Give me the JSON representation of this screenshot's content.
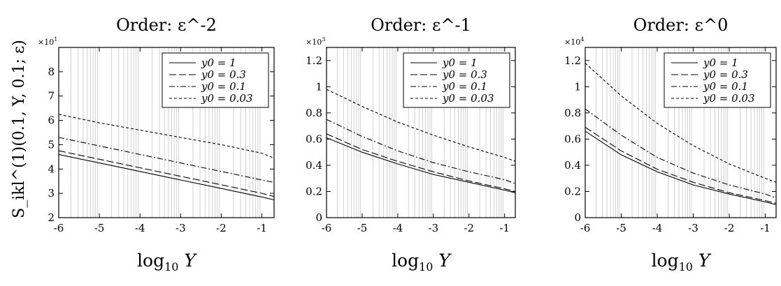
{
  "shared": {
    "ylabel": "S_ikl^(1)(0.1, Y, 0.1; ε)",
    "xlabel": "log10 Y",
    "legend": [
      "y0 = 1",
      "y0 = 0.3",
      "y0 = 0.1",
      "y0 = 0.03"
    ]
  },
  "chart_data": [
    {
      "type": "line",
      "title": "Order: ε^-2",
      "xlabel": "log10 Y",
      "ylabel": "S_ikl^(1)(0.1, Y, 0.1; ε)",
      "xlim": [
        -6,
        -0.7
      ],
      "ylim": [
        2,
        9
      ],
      "y_multiplier": "×10^1",
      "xticks": [
        -6,
        -5,
        -4,
        -3,
        -2,
        -1
      ],
      "yticks": [
        2,
        3,
        4,
        5,
        6,
        7,
        8
      ],
      "ytick_labels": [
        "2",
        "3",
        "4",
        "5",
        "6",
        "7",
        "8"
      ],
      "grid": "vertical minor lines",
      "legend_position": "top-right",
      "series": [
        {
          "name": "y0 = 1",
          "style": "solid",
          "x": [
            -6,
            -5,
            -4,
            -3,
            -2,
            -1,
            -0.7
          ],
          "y": [
            4.6,
            4.25,
            3.9,
            3.55,
            3.2,
            2.85,
            2.73
          ]
        },
        {
          "name": "y0 = 0.3",
          "style": "dashed",
          "x": [
            -6,
            -5,
            -4,
            -3,
            -2,
            -1,
            -0.7
          ],
          "y": [
            4.75,
            4.4,
            4.05,
            3.7,
            3.35,
            3.0,
            2.87
          ]
        },
        {
          "name": "y0 = 0.1",
          "style": "dashdot",
          "x": [
            -6,
            -5,
            -4,
            -3,
            -2,
            -1,
            -0.7
          ],
          "y": [
            5.3,
            4.95,
            4.6,
            4.25,
            3.9,
            3.55,
            3.45
          ]
        },
        {
          "name": "y0 = 0.03",
          "style": "shortdash",
          "x": [
            -6,
            -5,
            -4,
            -3,
            -2,
            -1,
            -0.7
          ],
          "y": [
            6.25,
            5.9,
            5.6,
            5.3,
            5.0,
            4.65,
            4.45
          ]
        }
      ]
    },
    {
      "type": "line",
      "title": "Order: ε^-1",
      "xlabel": "log10 Y",
      "xlim": [
        -6,
        -0.7
      ],
      "ylim": [
        0,
        1.3
      ],
      "y_multiplier": "×10^3",
      "xticks": [
        -6,
        -5,
        -4,
        -3,
        -2,
        -1
      ],
      "yticks": [
        0,
        0.2,
        0.4,
        0.6,
        0.8,
        1,
        1.2
      ],
      "ytick_labels": [
        "0",
        "0.2",
        "0.4",
        "0.6",
        "0.8",
        "1",
        "1.2"
      ],
      "grid": "vertical minor lines",
      "legend_position": "top-right",
      "series": [
        {
          "name": "y0 = 1",
          "style": "solid",
          "x": [
            -6,
            -5,
            -4,
            -3,
            -2,
            -1,
            -0.7
          ],
          "y": [
            0.61,
            0.5,
            0.41,
            0.33,
            0.27,
            0.21,
            0.19
          ]
        },
        {
          "name": "y0 = 0.3",
          "style": "dashed",
          "x": [
            -6,
            -5,
            -4,
            -3,
            -2,
            -1,
            -0.7
          ],
          "y": [
            0.64,
            0.52,
            0.43,
            0.35,
            0.28,
            0.22,
            0.2
          ]
        },
        {
          "name": "y0 = 0.1",
          "style": "dashdot",
          "x": [
            -6,
            -5,
            -4,
            -3,
            -2,
            -1,
            -0.7
          ],
          "y": [
            0.75,
            0.62,
            0.51,
            0.42,
            0.35,
            0.29,
            0.26
          ]
        },
        {
          "name": "y0 = 0.03",
          "style": "shortdash",
          "x": [
            -6,
            -5,
            -4,
            -3,
            -2,
            -1,
            -0.7
          ],
          "y": [
            0.98,
            0.85,
            0.73,
            0.63,
            0.54,
            0.46,
            0.43
          ]
        }
      ]
    },
    {
      "type": "line",
      "title": "Order: ε^0",
      "xlabel": "log10 Y",
      "xlim": [
        -6,
        -0.7
      ],
      "ylim": [
        0,
        1.3
      ],
      "y_multiplier": "×10^4",
      "xticks": [
        -6,
        -5,
        -4,
        -3,
        -2,
        -1
      ],
      "yticks": [
        0,
        0.2,
        0.4,
        0.6,
        0.8,
        1,
        1.2
      ],
      "ytick_labels": [
        "0",
        "0.2",
        "0.4",
        "0.6",
        "0.8",
        "1",
        "1.2"
      ],
      "grid": "vertical minor lines",
      "legend_position": "top-right",
      "series": [
        {
          "name": "y0 = 1",
          "style": "solid",
          "x": [
            -6,
            -5,
            -4,
            -3,
            -2,
            -1,
            -0.7
          ],
          "y": [
            0.66,
            0.48,
            0.35,
            0.25,
            0.18,
            0.12,
            0.1
          ]
        },
        {
          "name": "y0 = 0.3",
          "style": "dashed",
          "x": [
            -6,
            -5,
            -4,
            -3,
            -2,
            -1,
            -0.7
          ],
          "y": [
            0.69,
            0.51,
            0.37,
            0.27,
            0.19,
            0.13,
            0.11
          ]
        },
        {
          "name": "y0 = 0.1",
          "style": "dashdot",
          "x": [
            -6,
            -5,
            -4,
            -3,
            -2,
            -1,
            -0.7
          ],
          "y": [
            0.83,
            0.63,
            0.46,
            0.34,
            0.25,
            0.18,
            0.15
          ]
        },
        {
          "name": "y0 = 0.03",
          "style": "shortdash",
          "x": [
            -6,
            -5,
            -4,
            -3,
            -2,
            -1,
            -0.7
          ],
          "y": [
            1.18,
            0.93,
            0.72,
            0.55,
            0.41,
            0.3,
            0.27
          ]
        }
      ]
    }
  ]
}
